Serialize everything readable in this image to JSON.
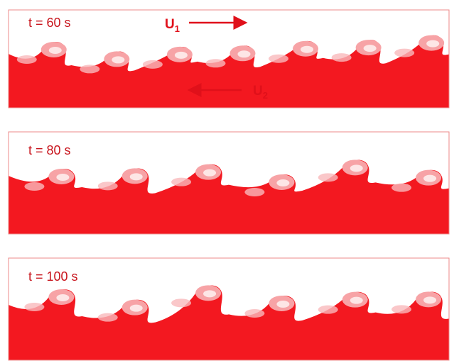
{
  "panels": [
    {
      "label": "t = 60 s"
    },
    {
      "label": "t = 80 s"
    },
    {
      "label": "t = 100 s"
    }
  ],
  "velocities": [
    {
      "symbol": "U",
      "subscript": "1"
    },
    {
      "symbol": "U",
      "subscript": "2"
    }
  ]
}
